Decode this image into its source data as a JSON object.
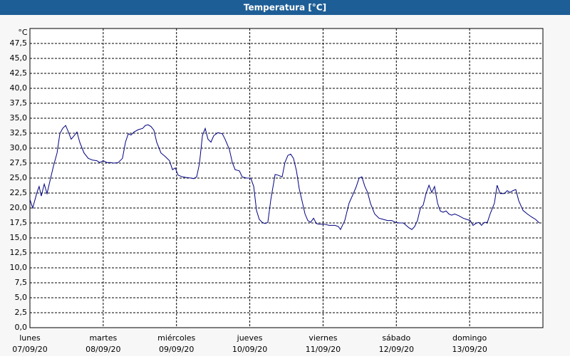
{
  "chart_data": {
    "type": "line",
    "title": "Temperatura [°C]",
    "y_unit": "°C",
    "xlim": [
      0,
      168
    ],
    "ylim": [
      0,
      50
    ],
    "xticks": [
      {
        "value": 0,
        "label": "lunes",
        "sublabel": "07/09/20"
      },
      {
        "value": 24,
        "label": "martes",
        "sublabel": "08/09/20"
      },
      {
        "value": 48,
        "label": "miércoles",
        "sublabel": "09/09/20"
      },
      {
        "value": 72,
        "label": "jueves",
        "sublabel": "10/09/20"
      },
      {
        "value": 96,
        "label": "viernes",
        "sublabel": "11/09/20"
      },
      {
        "value": 120,
        "label": "sábado",
        "sublabel": "12/09/20"
      },
      {
        "value": 144,
        "label": "domingo",
        "sublabel": "13/09/20"
      }
    ],
    "yticks": [
      {
        "value": 0,
        "label": "0,0"
      },
      {
        "value": 2.5,
        "label": "2,5"
      },
      {
        "value": 5,
        "label": "5,0"
      },
      {
        "value": 7.5,
        "label": "7,5"
      },
      {
        "value": 10,
        "label": "10,0"
      },
      {
        "value": 12.5,
        "label": "12,5"
      },
      {
        "value": 15,
        "label": "15,0"
      },
      {
        "value": 17.5,
        "label": "17,5"
      },
      {
        "value": 20,
        "label": "20,0"
      },
      {
        "value": 22.5,
        "label": "22,5"
      },
      {
        "value": 25,
        "label": "25,0"
      },
      {
        "value": 27.5,
        "label": "27,5"
      },
      {
        "value": 30,
        "label": "30,0"
      },
      {
        "value": 32.5,
        "label": "32,5"
      },
      {
        "value": 35,
        "label": "35,0"
      },
      {
        "value": 37.5,
        "label": "37,5"
      },
      {
        "value": 40,
        "label": "40,0"
      },
      {
        "value": 42.5,
        "label": "42,5"
      },
      {
        "value": 45,
        "label": "45,0"
      },
      {
        "value": 47.5,
        "label": "47,5"
      }
    ],
    "grid": true,
    "color": "#000080",
    "x": [
      0,
      0.9,
      2.3,
      3,
      3.7,
      4.7,
      5.6,
      6.5,
      7.7,
      8.9,
      9.8,
      10.7,
      11.7,
      12.6,
      13.5,
      14.5,
      15.4,
      16.3,
      17.7,
      19.1,
      20.5,
      21.9,
      22.9,
      24,
      25.2,
      26.4,
      27.5,
      28.9,
      30.3,
      31.3,
      32.2,
      33.1,
      34.1,
      35.5,
      36.9,
      37.8,
      38.7,
      39.7,
      40.6,
      41.5,
      42.9,
      44.3,
      45.7,
      46.7,
      47.6,
      48.5,
      49.9,
      51.3,
      52.7,
      53.7,
      54.6,
      55.5,
      56.5,
      57.4,
      58.3,
      59.3,
      60.2,
      61.6,
      63,
      63.9,
      65.3,
      66.3,
      67.2,
      68.6,
      69.5,
      70.9,
      72.3,
      73.3,
      74.2,
      75.1,
      76.1,
      77,
      77.9,
      78.9,
      80.3,
      81.2,
      82.6,
      83.5,
      84.5,
      85.4,
      86.3,
      87.3,
      88.2,
      89.1,
      90.1,
      91,
      91.9,
      92.9,
      93.8,
      94.7,
      96.4,
      98,
      99.9,
      101,
      101.7,
      103.1,
      104.5,
      105.9,
      106.9,
      107.8,
      108.7,
      109.7,
      110.6,
      111.5,
      112.9,
      114.3,
      115.7,
      117.1,
      118.5,
      119.7,
      120.9,
      122.3,
      123.2,
      124.1,
      125.1,
      126,
      126.9,
      127.9,
      128.8,
      129.7,
      130.7,
      131.6,
      132.5,
      133.5,
      134.4,
      135.3,
      136.3,
      137.2,
      138.1,
      139.1,
      140.5,
      141.9,
      143,
      144.2,
      145.1,
      146,
      147,
      147.9,
      148.8,
      149.8,
      150.7,
      152.1,
      153,
      154,
      155.4,
      156.3,
      157.2,
      158.2,
      159.1,
      160.1,
      161.5,
      162.9,
      164.3,
      165.6,
      166.8
    ],
    "values": [
      21.4,
      20,
      22.6,
      23.6,
      22,
      24,
      22.4,
      24.4,
      27,
      29.2,
      32.4,
      33.3,
      33.8,
      32.7,
      31.5,
      32.1,
      32.7,
      31,
      29.2,
      28.3,
      28,
      27.9,
      27.6,
      27.9,
      27.6,
      27.6,
      27.5,
      27.6,
      28.3,
      31,
      32.4,
      32.2,
      32.7,
      33.1,
      33.3,
      33.8,
      33.9,
      33.6,
      33,
      31,
      29.2,
      28.6,
      27.9,
      26.4,
      26.7,
      25.5,
      25.2,
      25.1,
      25,
      24.9,
      25.2,
      27.4,
      32.1,
      33.3,
      31.5,
      31,
      32.1,
      32.6,
      32.4,
      31.5,
      29.8,
      27.6,
      26.4,
      26.2,
      25.2,
      25,
      25,
      23.6,
      19.6,
      18.1,
      17.6,
      17.4,
      17.6,
      21.4,
      25.6,
      25.5,
      25.2,
      27.6,
      28.8,
      29,
      28.3,
      26.2,
      23.2,
      21.2,
      19,
      17.9,
      17.6,
      18.3,
      17.4,
      17.3,
      17.3,
      17.1,
      17.1,
      16.9,
      16.4,
      17.9,
      20.8,
      22.4,
      23.6,
      25,
      25.2,
      23.6,
      22.6,
      20.8,
      19,
      18.3,
      18.1,
      17.9,
      17.9,
      17.6,
      17.5,
      17.5,
      17.1,
      16.7,
      16.4,
      16.9,
      17.9,
      20,
      20.5,
      22.4,
      23.8,
      22.6,
      23.6,
      20.8,
      19.5,
      19.3,
      19.5,
      19,
      18.8,
      19,
      18.7,
      18.3,
      18.1,
      17.9,
      17.1,
      17.4,
      17.6,
      17.1,
      17.6,
      17.6,
      19,
      20.8,
      23.8,
      22.4,
      22.4,
      22.9,
      22.6,
      22.9,
      23.1,
      21.2,
      19.6,
      19,
      18.5,
      18.1,
      17.5
    ]
  }
}
